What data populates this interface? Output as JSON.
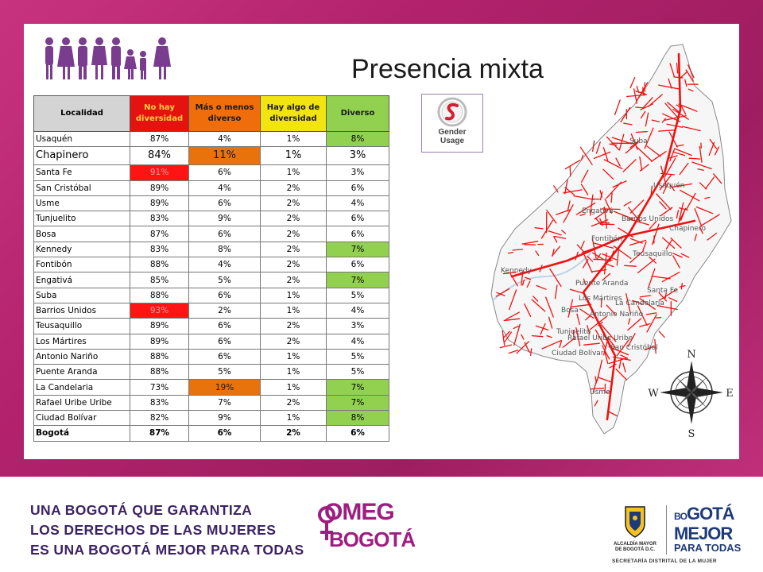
{
  "slide": {
    "title": "Presencia mixta"
  },
  "table": {
    "headers": [
      "Localidad",
      "No hay diversidad",
      "Más o menos diverso",
      "Hay algo de diversidad",
      "Diverso"
    ],
    "rows": [
      [
        "Usaquén",
        "87%",
        "4%",
        "1%",
        "8%"
      ],
      [
        "Chapinero",
        "84%",
        "11%",
        "1%",
        "3%"
      ],
      [
        "Santa Fe",
        "91%",
        "6%",
        "1%",
        "3%"
      ],
      [
        "San Cristóbal",
        "89%",
        "4%",
        "2%",
        "6%"
      ],
      [
        "Usme",
        "89%",
        "6%",
        "2%",
        "4%"
      ],
      [
        "Tunjuelito",
        "83%",
        "9%",
        "2%",
        "6%"
      ],
      [
        "Bosa",
        "87%",
        "6%",
        "2%",
        "6%"
      ],
      [
        "Kennedy",
        "83%",
        "8%",
        "2%",
        "7%"
      ],
      [
        "Fontibón",
        "88%",
        "4%",
        "2%",
        "6%"
      ],
      [
        "Engativá",
        "85%",
        "5%",
        "2%",
        "7%"
      ],
      [
        "Suba",
        "88%",
        "6%",
        "1%",
        "5%"
      ],
      [
        "Barrios Unidos",
        "93%",
        "2%",
        "1%",
        "4%"
      ],
      [
        "Teusaquillo",
        "89%",
        "6%",
        "2%",
        "3%"
      ],
      [
        "Los Mártires",
        "89%",
        "6%",
        "2%",
        "4%"
      ],
      [
        "Antonio Nariño",
        "88%",
        "6%",
        "1%",
        "5%"
      ],
      [
        "Puente Aranda",
        "88%",
        "5%",
        "1%",
        "5%"
      ],
      [
        "La Candelaria",
        "73%",
        "19%",
        "1%",
        "7%"
      ],
      [
        "Rafael Uribe Uribe",
        "83%",
        "7%",
        "2%",
        "7%"
      ],
      [
        "Ciudad Bolívar",
        "82%",
        "9%",
        "1%",
        "8%"
      ],
      [
        "Bogotá",
        "87%",
        "6%",
        "2%",
        "6%"
      ]
    ],
    "colors": {
      "red": "#ff1414",
      "orange": "#e8720c",
      "green": "#92d050",
      "header_grey": "#d4d4d4"
    }
  },
  "badge": {
    "line1": "Gender",
    "line2": "Usage",
    "icon": "gender-usage-logo-icon"
  },
  "map": {
    "labels": [
      "Suba",
      "Engativá",
      "Barrios Unidos",
      "Chapinero",
      "Usaquén",
      "Teusaquillo",
      "Kennedy",
      "Puente Aranda",
      "Los Mártires",
      "Santa Fe",
      "Fontibón",
      "Bosa",
      "Antonio Nariño",
      "La Candelaria",
      "Tunjuelito",
      "Rafael Uribe Uribe",
      "San Cristóbal",
      "Ciudad Bolívar",
      "Usme"
    ],
    "compass": {
      "n": "N",
      "s": "S",
      "e": "E",
      "w": "W"
    },
    "stroke_color": "#ee1111"
  },
  "footer": {
    "lines": [
      "UNA BOGOTÁ QUE GARANTIZA",
      "LOS DERECHOS DE LAS MUJERES",
      "ES UNA BOGOTÁ MEJOR PARA TODAS"
    ],
    "omeg": {
      "line1": "OMEG",
      "line2": "BOGOTÁ"
    },
    "alcaldia": {
      "line1": "ALCALDÍA MAYOR",
      "line2": "DE BOGOTÁ D.C."
    },
    "bmpt": {
      "prefix": "BO",
      "l1": "GOTÁ",
      "l2": "MEJOR",
      "l3": "PARA TODAS"
    },
    "secretaria": "SECRETARÍA DISTRITAL DE LA MUJER"
  }
}
